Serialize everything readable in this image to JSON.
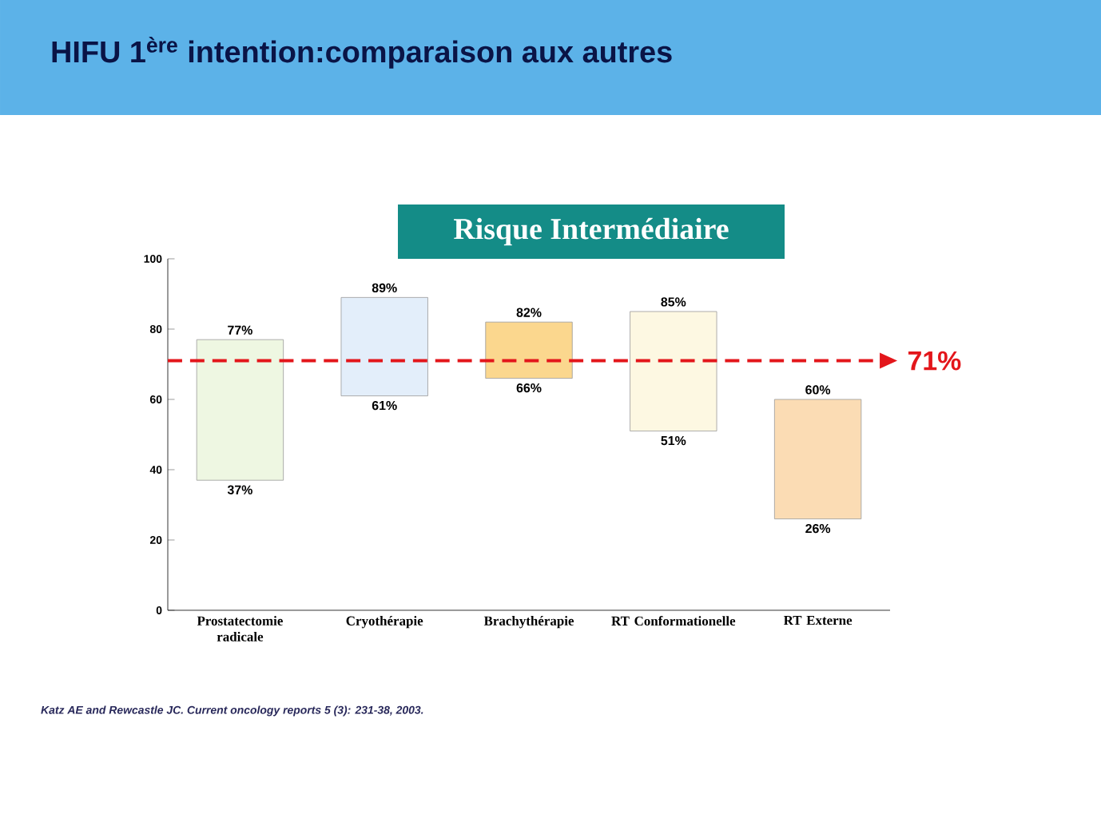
{
  "chart_data": {
    "type": "bar",
    "title": "HIFU 1$^{ère}$ intention:comparaison aux autres",
    "subtitle": "Risque Intermédiaire",
    "categories": [
      "Prostatectomie radicale",
      "Cryothérapie",
      "Brachythérapie",
      "RT Conformationelle",
      "RT Externe"
    ],
    "base": [
      37,
      61,
      66,
      51,
      26
    ],
    "values": [
      40,
      28,
      16,
      34,
      34
    ],
    "colors": [
      "#eef7e2",
      "#e3eefa",
      "#fbd78e",
      "#fdf8e2",
      "#fbdcb4"
    ],
    "ylim": [
      0,
      100
    ],
    "yticks": [
      0,
      20,
      40,
      60,
      80,
      100
    ],
    "grid": false,
    "ref_lines": [
      {
        "axis": "y",
        "value": 71,
        "label": "71%",
        "color": "#e3161b",
        "line_style": "dashed"
      }
    ],
    "annotations": [
      {
        "text": "77%",
        "x": "Prostatectomie radicale",
        "y": 77
      },
      {
        "text": "37%",
        "x": "Prostatectomie radicale",
        "y": 37
      },
      {
        "text": "89%",
        "x": "Cryothérapie",
        "y": 89
      },
      {
        "text": "61%",
        "x": "Cryothérapie",
        "y": 61
      },
      {
        "text": "82%",
        "x": "Brachythérapie",
        "y": 82
      },
      {
        "text": "66%",
        "x": "Brachythérapie",
        "y": 66
      },
      {
        "text": "85%",
        "x": "RT Conformationelle",
        "y": 85
      },
      {
        "text": "51%",
        "x": "RT Conformationelle",
        "y": 51
      },
      {
        "text": "60%",
        "x": "RT Externe",
        "y": 60
      },
      {
        "text": "26%",
        "x": "RT Externe",
        "y": 26
      },
      "Katz AE and Rewcastle JC. Current oncology reports 5 (3): 231-38, 2003."
    ]
  }
}
